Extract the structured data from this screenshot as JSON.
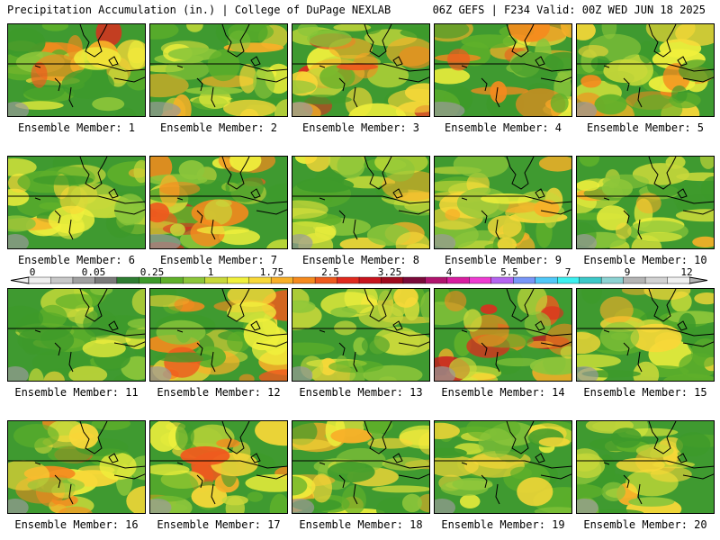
{
  "header": {
    "left": "Precipitation Accumulation (in.) | College of DuPage NEXLAB",
    "right": "06Z GEFS | F234 Valid: 00Z WED JUN 18 2025"
  },
  "legend": {
    "labels": [
      "0",
      "0.05",
      "0.25",
      "1",
      "1.75",
      "2.5",
      "3.25",
      "4",
      "5.5",
      "7",
      "9",
      "12"
    ],
    "colors": [
      "#eeeeee",
      "#c8c8c8",
      "#a0a0a0",
      "#7a7a7a",
      "#2e7d32",
      "#3d9a2a",
      "#5fb02a",
      "#8cc63a",
      "#c8d83a",
      "#f0f03c",
      "#f8d838",
      "#f8b028",
      "#f58a1e",
      "#ee5a1e",
      "#e02a1e",
      "#c8141e",
      "#a00a1e",
      "#7a0a3a",
      "#b0146e",
      "#d81ea0",
      "#ee3cd2",
      "#b464f0",
      "#7896f8",
      "#50c8f8",
      "#3cf0f0",
      "#3cc8c8",
      "#8cd2d2",
      "#b4b4b4",
      "#d2d2d2",
      "#f0f0f0"
    ]
  },
  "members": [
    {
      "label": "Ensemble Member: 1",
      "intensity": 0.62
    },
    {
      "label": "Ensemble Member: 2",
      "intensity": 0.45
    },
    {
      "label": "Ensemble Member: 3",
      "intensity": 0.68
    },
    {
      "label": "Ensemble Member: 4",
      "intensity": 0.6
    },
    {
      "label": "Ensemble Member: 5",
      "intensity": 0.55
    },
    {
      "label": "Ensemble Member: 6",
      "intensity": 0.45
    },
    {
      "label": "Ensemble Member: 7",
      "intensity": 0.62
    },
    {
      "label": "Ensemble Member: 8",
      "intensity": 0.45
    },
    {
      "label": "Ensemble Member: 9",
      "intensity": 0.5
    },
    {
      "label": "Ensemble Member: 10",
      "intensity": 0.5
    },
    {
      "label": "Ensemble Member: 11",
      "intensity": 0.35
    },
    {
      "label": "Ensemble Member: 12",
      "intensity": 0.65
    },
    {
      "label": "Ensemble Member: 13",
      "intensity": 0.4
    },
    {
      "label": "Ensemble Member: 14",
      "intensity": 0.7
    },
    {
      "label": "Ensemble Member: 15",
      "intensity": 0.45
    },
    {
      "label": "Ensemble Member: 16",
      "intensity": 0.55
    },
    {
      "label": "Ensemble Member: 17",
      "intensity": 0.58
    },
    {
      "label": "Ensemble Member: 18",
      "intensity": 0.45
    },
    {
      "label": "Ensemble Member: 19",
      "intensity": 0.4
    },
    {
      "label": "Ensemble Member: 20",
      "intensity": 0.45
    }
  ]
}
